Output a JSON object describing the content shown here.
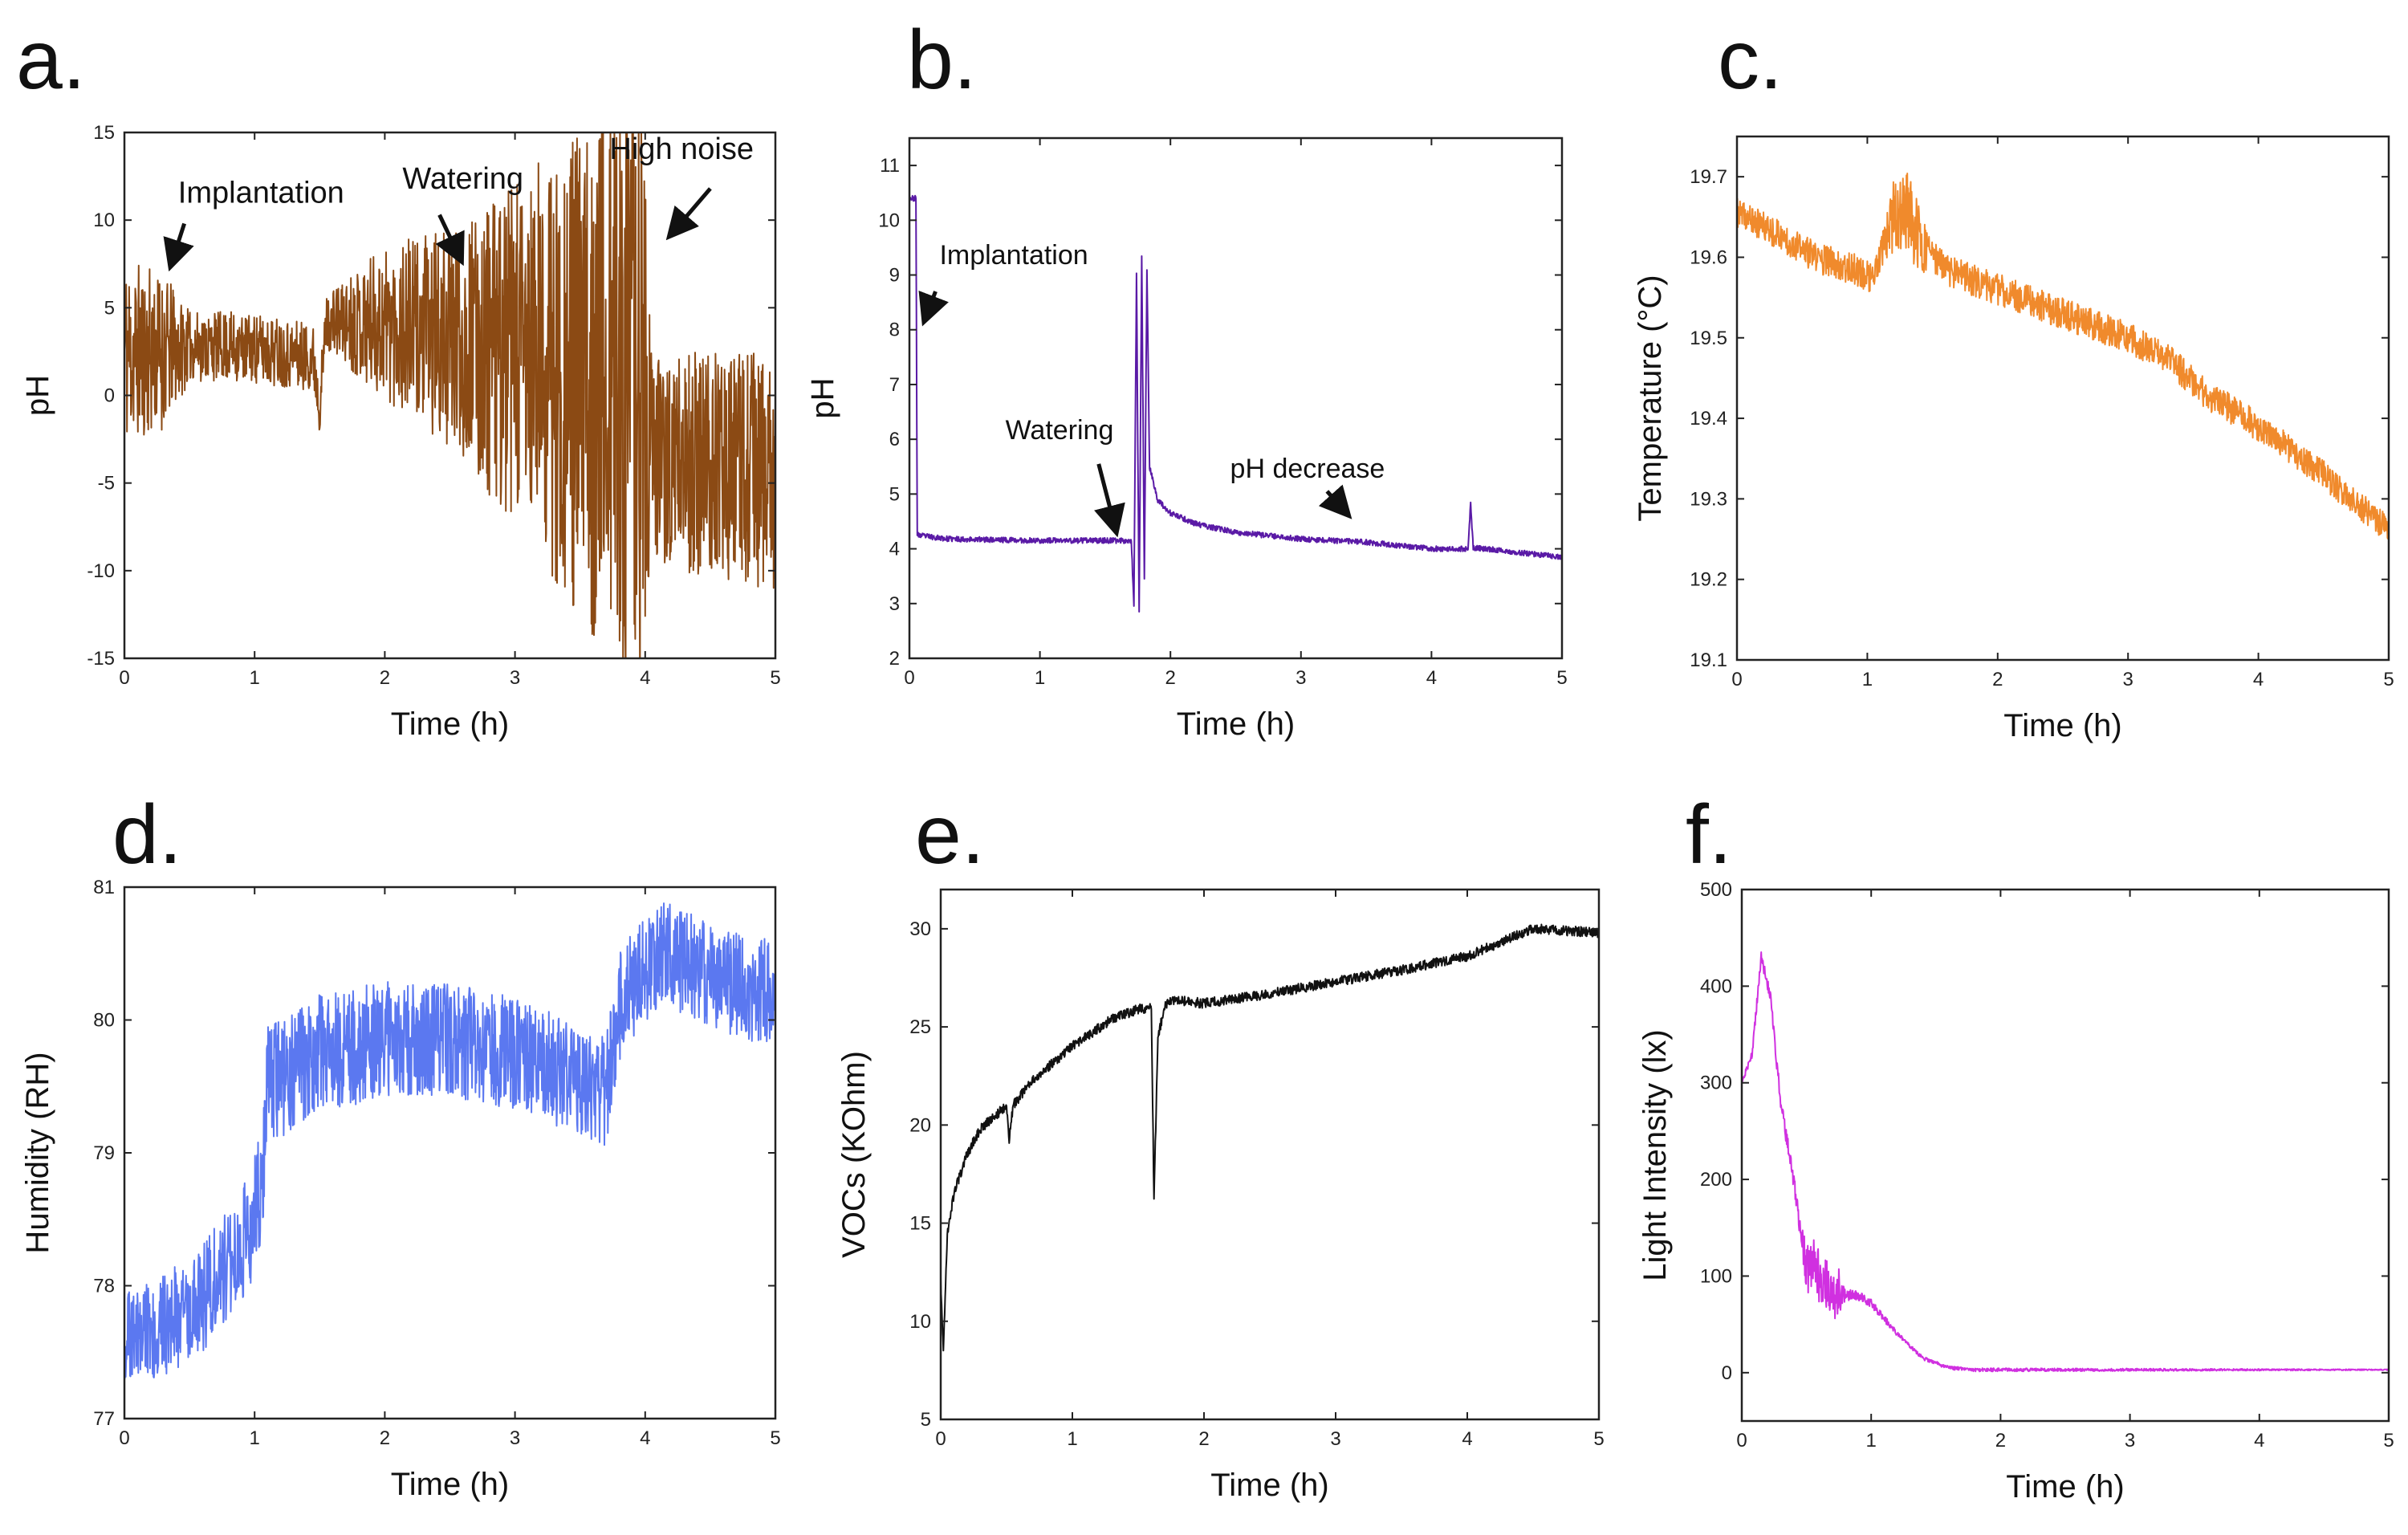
{
  "chart_data": [
    {
      "id": "a",
      "panel_label": "a.",
      "type": "line",
      "xlabel": "Time (h)",
      "ylabel": "pH",
      "xlim": [
        0,
        5
      ],
      "ylim": [
        -15,
        15
      ],
      "xticks": [
        0,
        1,
        2,
        3,
        4,
        5
      ],
      "yticks": [
        -15,
        -10,
        -5,
        0,
        5,
        10,
        15
      ],
      "series": [
        {
          "name": "pH",
          "color": "#8b4a14",
          "noise_seed": 11,
          "points": [
            [
              0,
              2.5
            ],
            [
              0.3,
              2.5
            ],
            [
              0.5,
              2.8
            ],
            [
              0.8,
              2.8
            ],
            [
              1.2,
              2.5
            ],
            [
              1.45,
              2.2
            ],
            [
              1.5,
              -0.5
            ],
            [
              1.55,
              4.2
            ],
            [
              2.0,
              4.2
            ],
            [
              2.5,
              3.2
            ],
            [
              3.0,
              2.2
            ],
            [
              3.5,
              1.2
            ],
            [
              4.0,
              0.6
            ],
            [
              4.02,
              -3.5
            ],
            [
              4.5,
              -4.0
            ],
            [
              5.0,
              -4.5
            ]
          ],
          "noise": [
            [
              0,
              5.5
            ],
            [
              0.3,
              4.5
            ],
            [
              0.5,
              2.0
            ],
            [
              1.4,
              2.0
            ],
            [
              1.55,
              1.5
            ],
            [
              2.0,
              4.5
            ],
            [
              2.6,
              6.5
            ],
            [
              3.0,
              10
            ],
            [
              3.5,
              14
            ],
            [
              3.98,
              18
            ],
            [
              4.05,
              6
            ],
            [
              5.0,
              7
            ]
          ]
        }
      ],
      "annotations": [
        {
          "text": "Implantation",
          "x": 1.05,
          "y": 11.0,
          "fs": 38,
          "ax1": 0.46,
          "ay1": 9.8,
          "ax2": 0.36,
          "ay2": 7.5
        },
        {
          "text": "Watering",
          "x": 2.6,
          "y": 11.8,
          "fs": 38,
          "ax1": 2.42,
          "ay1": 10.3,
          "ax2": 2.58,
          "ay2": 7.8
        },
        {
          "text": "High noise",
          "x": 4.28,
          "y": 13.5,
          "fs": 38,
          "ax1": 4.5,
          "ay1": 11.8,
          "ax2": 4.2,
          "ay2": 9.2
        }
      ]
    },
    {
      "id": "b",
      "panel_label": "b.",
      "type": "line",
      "xlabel": "Time (h)",
      "ylabel": "pH",
      "xlim": [
        0,
        5
      ],
      "ylim": [
        2,
        11.5
      ],
      "xticks": [
        0,
        1,
        2,
        3,
        4,
        5
      ],
      "yticks": [
        2,
        3,
        4,
        5,
        6,
        7,
        8,
        9,
        10,
        11
      ],
      "series": [
        {
          "name": "pH",
          "color": "#5a1aa6",
          "noise_seed": 23,
          "points": [
            [
              0,
              10.4
            ],
            [
              0.05,
              10.4
            ],
            [
              0.06,
              4.25
            ],
            [
              0.3,
              4.18
            ],
            [
              1.0,
              4.15
            ],
            [
              1.5,
              4.15
            ],
            [
              1.7,
              4.15
            ],
            [
              1.72,
              3.0
            ],
            [
              1.74,
              9.0
            ],
            [
              1.76,
              2.8
            ],
            [
              1.78,
              9.3
            ],
            [
              1.8,
              3.5
            ],
            [
              1.82,
              9.1
            ],
            [
              1.84,
              5.5
            ],
            [
              1.9,
              4.9
            ],
            [
              2.0,
              4.65
            ],
            [
              2.2,
              4.45
            ],
            [
              2.5,
              4.3
            ],
            [
              3.0,
              4.18
            ],
            [
              3.5,
              4.12
            ],
            [
              4.0,
              4.0
            ],
            [
              4.28,
              4.0
            ],
            [
              4.3,
              4.8
            ],
            [
              4.32,
              4.02
            ],
            [
              4.5,
              3.98
            ],
            [
              5.0,
              3.85
            ]
          ],
          "noise": [
            [
              0,
              0.05
            ],
            [
              5,
              0.05
            ]
          ]
        }
      ],
      "annotations": [
        {
          "text": "Implantation",
          "x": 0.8,
          "y": 9.2,
          "fs": 34,
          "ax1": 0.2,
          "ay1": 8.7,
          "ax2": 0.12,
          "ay2": 8.2
        },
        {
          "text": "Watering",
          "x": 1.15,
          "y": 6.0,
          "fs": 34,
          "ax1": 1.45,
          "ay1": 5.55,
          "ax2": 1.58,
          "ay2": 4.35
        },
        {
          "text": "pH decrease",
          "x": 3.05,
          "y": 5.3,
          "fs": 34,
          "ax1": 3.2,
          "ay1": 5.05,
          "ax2": 3.35,
          "ay2": 4.65
        }
      ]
    },
    {
      "id": "c",
      "panel_label": "c.",
      "type": "line",
      "xlabel": "Time (h)",
      "ylabel": "Temperature (°C)",
      "xlim": [
        0,
        5
      ],
      "ylim": [
        19.1,
        19.75
      ],
      "xticks": [
        0,
        1,
        2,
        3,
        4,
        5
      ],
      "yticks": [
        19.1,
        19.2,
        19.3,
        19.4,
        19.5,
        19.6,
        19.7
      ],
      "series": [
        {
          "name": "Temperature",
          "color": "#f08a2c",
          "noise_seed": 37,
          "points": [
            [
              0,
              19.655
            ],
            [
              0.3,
              19.63
            ],
            [
              0.6,
              19.6
            ],
            [
              0.9,
              19.585
            ],
            [
              1.05,
              19.575
            ],
            [
              1.1,
              19.6
            ],
            [
              1.2,
              19.645
            ],
            [
              1.3,
              19.66
            ],
            [
              1.4,
              19.62
            ],
            [
              1.6,
              19.585
            ],
            [
              2.0,
              19.56
            ],
            [
              2.5,
              19.53
            ],
            [
              3.0,
              19.5
            ],
            [
              3.3,
              19.475
            ],
            [
              3.6,
              19.43
            ],
            [
              4.0,
              19.39
            ],
            [
              4.5,
              19.33
            ],
            [
              5.0,
              19.26
            ]
          ],
          "noise": [
            [
              0,
              0.018
            ],
            [
              1.1,
              0.02
            ],
            [
              1.2,
              0.05
            ],
            [
              1.35,
              0.05
            ],
            [
              1.5,
              0.02
            ],
            [
              5,
              0.018
            ]
          ]
        }
      ],
      "annotations": []
    },
    {
      "id": "d",
      "panel_label": "d.",
      "type": "line",
      "xlabel": "Time (h)",
      "ylabel": "Humidity (RH)",
      "xlim": [
        0,
        5
      ],
      "ylim": [
        77,
        81
      ],
      "xticks": [
        0,
        1,
        2,
        3,
        4,
        5
      ],
      "yticks": [
        77,
        78,
        79,
        80,
        81
      ],
      "series": [
        {
          "name": "Humidity",
          "color": "#5b78f0",
          "noise_seed": 51,
          "points": [
            [
              0,
              77.6
            ],
            [
              0.3,
              77.7
            ],
            [
              0.6,
              77.9
            ],
            [
              0.8,
              78.2
            ],
            [
              0.95,
              78.4
            ],
            [
              1.05,
              78.7
            ],
            [
              1.1,
              79.5
            ],
            [
              1.5,
              79.75
            ],
            [
              2.0,
              79.85
            ],
            [
              2.5,
              79.85
            ],
            [
              3.0,
              79.75
            ],
            [
              3.5,
              79.55
            ],
            [
              3.7,
              79.45
            ],
            [
              3.8,
              80.1
            ],
            [
              4.0,
              80.4
            ],
            [
              4.2,
              80.5
            ],
            [
              4.5,
              80.3
            ],
            [
              5.0,
              80.2
            ]
          ],
          "noise": [
            [
              0,
              0.35
            ],
            [
              1,
              0.45
            ],
            [
              5,
              0.4
            ]
          ]
        }
      ],
      "annotations": []
    },
    {
      "id": "e",
      "panel_label": "e.",
      "type": "line",
      "xlabel": "Time (h)",
      "ylabel": "VOCs (KOhm)",
      "xlim": [
        0,
        5
      ],
      "ylim": [
        5,
        32
      ],
      "xticks": [
        0,
        1,
        2,
        3,
        4,
        5
      ],
      "yticks": [
        5,
        10,
        15,
        20,
        25,
        30
      ],
      "series": [
        {
          "name": "VOCs",
          "color": "#111111",
          "noise_seed": 67,
          "points": [
            [
              0,
              12
            ],
            [
              0.02,
              8.5
            ],
            [
              0.05,
              14.5
            ],
            [
              0.1,
              16.5
            ],
            [
              0.2,
              18.5
            ],
            [
              0.3,
              19.8
            ],
            [
              0.5,
              21.0
            ],
            [
              0.52,
              19.3
            ],
            [
              0.55,
              21.0
            ],
            [
              0.7,
              22.3
            ],
            [
              1.0,
              24.0
            ],
            [
              1.3,
              25.4
            ],
            [
              1.5,
              25.9
            ],
            [
              1.6,
              26.0
            ],
            [
              1.62,
              16.2
            ],
            [
              1.65,
              24.5
            ],
            [
              1.7,
              26.0
            ],
            [
              1.75,
              26.4
            ],
            [
              2.0,
              26.2
            ],
            [
              2.5,
              26.7
            ],
            [
              3.0,
              27.3
            ],
            [
              3.5,
              27.9
            ],
            [
              4.0,
              28.6
            ],
            [
              4.5,
              30.0
            ],
            [
              5.0,
              29.8
            ]
          ],
          "noise": [
            [
              0,
              0.25
            ],
            [
              5,
              0.25
            ]
          ]
        }
      ],
      "annotations": []
    },
    {
      "id": "f",
      "panel_label": "f.",
      "type": "line",
      "xlabel": "Time (h)",
      "ylabel": "Light Intensity (lx)",
      "xlim": [
        0,
        5
      ],
      "ylim": [
        -50,
        500
      ],
      "xticks": [
        0,
        1,
        2,
        3,
        4,
        5
      ],
      "yticks": [
        0,
        100,
        200,
        300,
        400,
        500
      ],
      "series": [
        {
          "name": "Light Intensity",
          "color": "#d030e0",
          "noise_seed": 83,
          "points": [
            [
              0,
              300
            ],
            [
              0.08,
              330
            ],
            [
              0.15,
              430
            ],
            [
              0.22,
              390
            ],
            [
              0.3,
              280
            ],
            [
              0.4,
              200
            ],
            [
              0.45,
              150
            ],
            [
              0.5,
              105
            ],
            [
              0.55,
              120
            ],
            [
              0.6,
              100
            ],
            [
              0.7,
              80
            ],
            [
              0.9,
              80
            ],
            [
              1.0,
              72
            ],
            [
              1.2,
              40
            ],
            [
              1.4,
              15
            ],
            [
              1.6,
              5
            ],
            [
              1.8,
              3
            ],
            [
              5.0,
              3
            ]
          ],
          "noise": [
            [
              0,
              3
            ],
            [
              0.45,
              10
            ],
            [
              0.5,
              28
            ],
            [
              0.75,
              28
            ],
            [
              0.8,
              6
            ],
            [
              1.3,
              2
            ],
            [
              5,
              0.5
            ]
          ]
        }
      ],
      "annotations": []
    }
  ]
}
